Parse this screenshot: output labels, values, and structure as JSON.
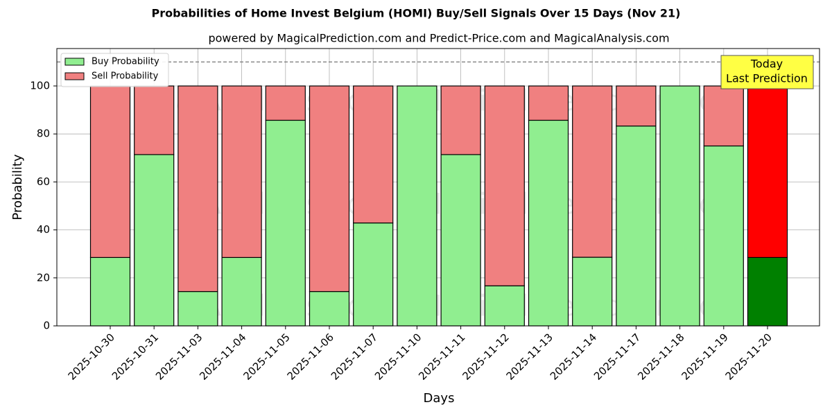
{
  "chart_data": {
    "type": "stacked_bar",
    "title": "Probabilities of Home Invest Belgium (HOMI) Buy/Sell Signals Over 15 Days (Nov 21)",
    "subtitle": "powered by MagicalPrediction.com and Predict-Price.com and MagicalAnalysis.com",
    "x_label": "Days",
    "y_label": "Probability",
    "categories": [
      "2025-10-30",
      "2025-10-31",
      "2025-11-03",
      "2025-11-04",
      "2025-11-05",
      "2025-11-06",
      "2025-11-07",
      "2025-11-10",
      "2025-11-11",
      "2025-11-12",
      "2025-11-13",
      "2025-11-14",
      "2025-11-17",
      "2025-11-18",
      "2025-11-19",
      "2025-11-20"
    ],
    "series": [
      {
        "name": "Buy Probability",
        "color": "#90ee90",
        "highlight_color": "#008000",
        "values": [
          28.5,
          71.4,
          14.3,
          28.5,
          85.7,
          14.3,
          42.9,
          100,
          71.4,
          16.7,
          85.7,
          28.6,
          83.3,
          100,
          75,
          28.5
        ]
      },
      {
        "name": "Sell Probability",
        "color": "#f08080",
        "highlight_color": "#ff0000",
        "values": [
          71.5,
          28.6,
          85.7,
          71.5,
          14.3,
          85.7,
          57.1,
          0,
          28.6,
          83.3,
          14.3,
          71.4,
          16.7,
          0,
          25,
          71.5
        ]
      }
    ],
    "highlight_index": 15,
    "ylim": [
      0,
      115.6
    ],
    "yticks": [
      0,
      20,
      40,
      60,
      80,
      100
    ],
    "reference_line": 110,
    "grid": true,
    "legend": "upper-left",
    "annotation": [
      "Today",
      "Last Prediction"
    ],
    "watermarks": [
      "MagicalAnalysis.com",
      "MagicalPrediction.com"
    ]
  }
}
